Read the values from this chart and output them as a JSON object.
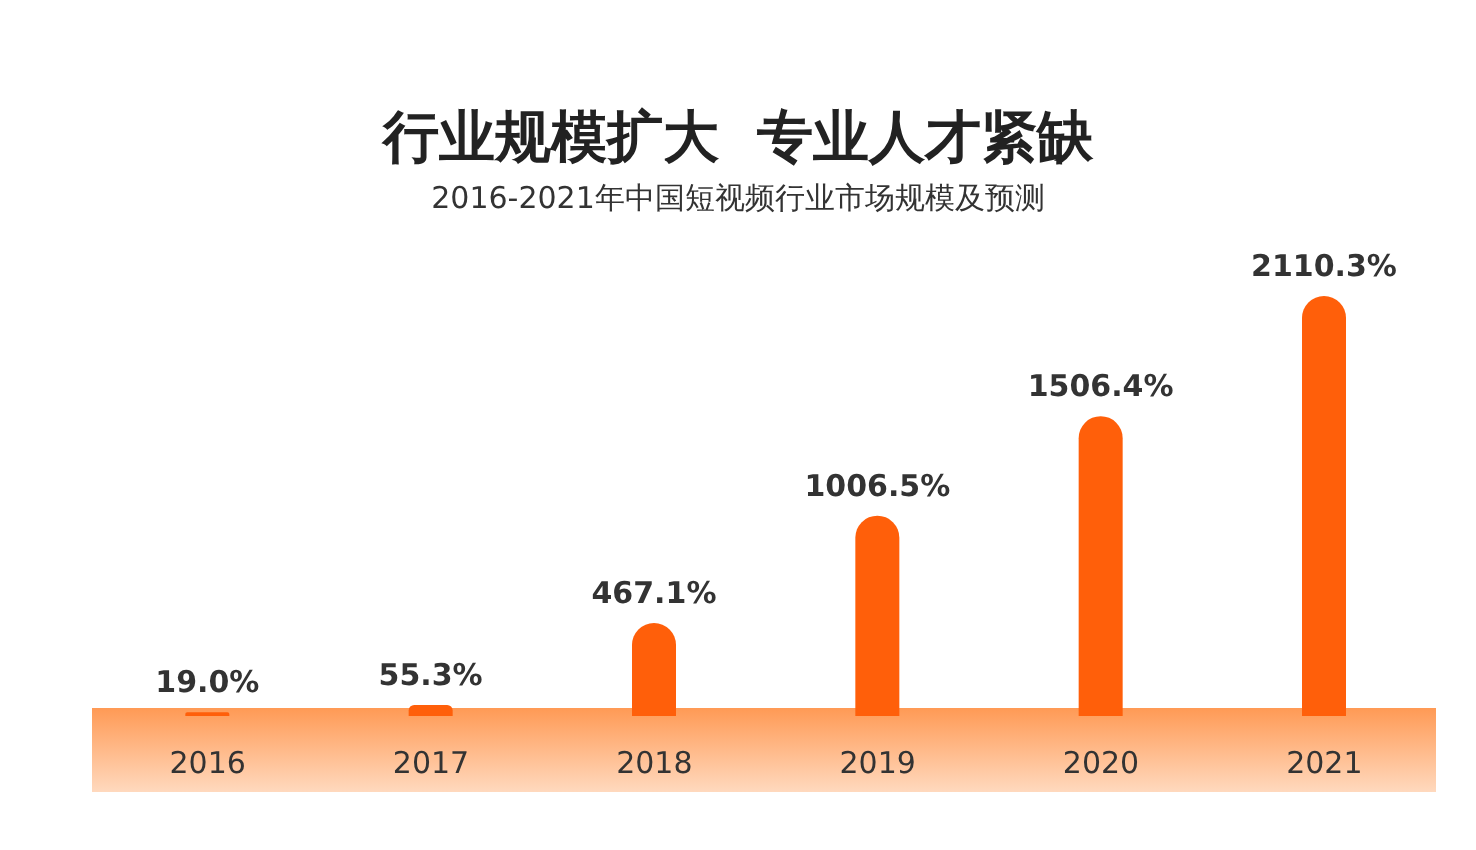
{
  "chart_data": {
    "type": "bar",
    "title": "行业规模扩大  专业人才紧缺",
    "subtitle": "2016-2021年中国短视频行业市场规模及预测",
    "categories": [
      "2016",
      "2017",
      "2018",
      "2019",
      "2020",
      "2021"
    ],
    "values": [
      19.0,
      55.3,
      467.1,
      1006.5,
      1506.4,
      2110.3
    ],
    "value_labels": [
      "19.0%",
      "55.3%",
      "467.1%",
      "1006.5%",
      "1506.4%",
      "2110.3%"
    ],
    "color": "#ff5f0a"
  }
}
